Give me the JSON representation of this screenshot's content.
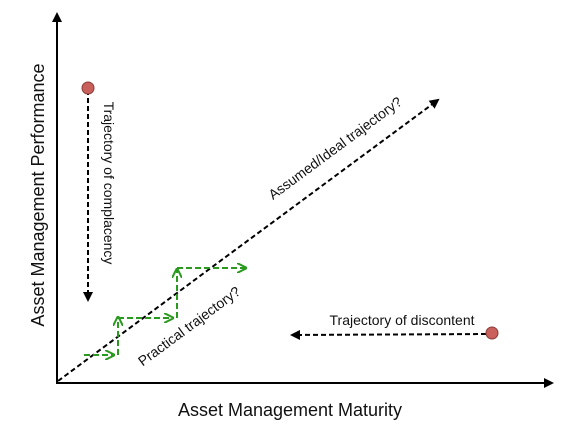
{
  "axes": {
    "x_label": "Asset Management Maturity",
    "y_label": "Asset Management Performance"
  },
  "trajectories": {
    "ideal": "Assumed/Ideal trajectory?",
    "practical": "Practical trajectory?",
    "complacency": "Trajectory of complacency",
    "discontent": "Trajectory of discontent"
  }
}
